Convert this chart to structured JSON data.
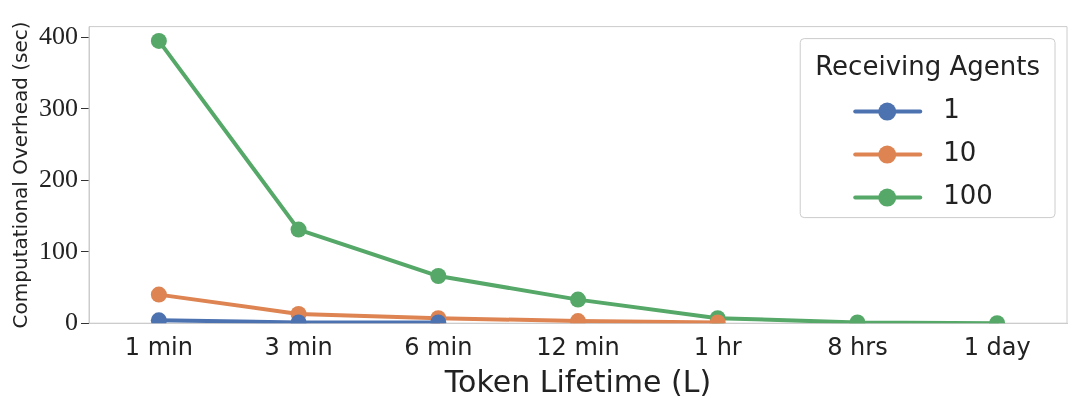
{
  "chart_data": {
    "type": "line",
    "xlabel": "Token Lifetime (L)",
    "ylabel": "Computational Overhead (sec)",
    "legend_title": "Receiving Agents",
    "categories": [
      "1 min",
      "3 min",
      "6 min",
      "12 min",
      "1 hr",
      "8 hrs",
      "1 day"
    ],
    "series": [
      {
        "name": "1",
        "color": "#4c72b0",
        "values": [
          4,
          1,
          1,
          null,
          null,
          null,
          null
        ]
      },
      {
        "name": "10",
        "color": "#dd8452",
        "values": [
          40,
          13,
          7,
          3,
          1,
          null,
          null
        ]
      },
      {
        "name": "100",
        "color": "#55a868",
        "values": [
          395,
          131,
          66,
          33,
          7,
          1,
          0
        ]
      }
    ],
    "ylim": [
      0,
      415
    ],
    "yticks": [
      0,
      100,
      200,
      300,
      400
    ],
    "grid": false,
    "legend": "top right",
    "marker": "circle",
    "line_style": "solid"
  }
}
